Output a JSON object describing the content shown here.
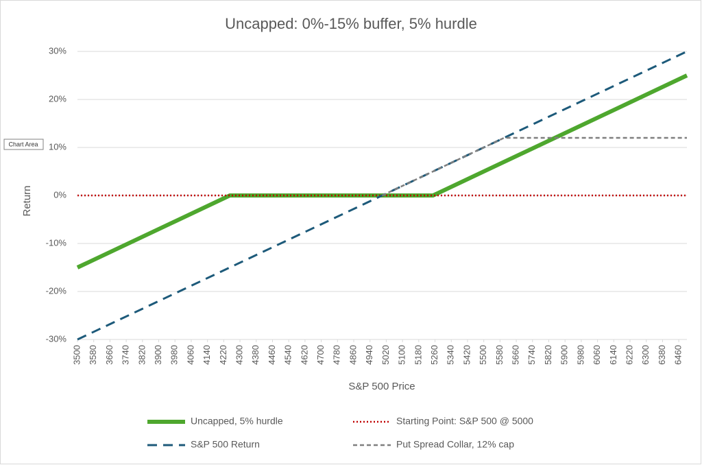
{
  "chart_data": {
    "type": "line",
    "title": "Uncapped: 0%-15% buffer, 5% hurdle",
    "x_label": "S&P 500 Price",
    "y_label": "Return",
    "tooltip": "Chart Area",
    "xlim": [
      3500,
      6500
    ],
    "xticks": [
      3500,
      3580,
      3660,
      3740,
      3820,
      3900,
      3980,
      4060,
      4140,
      4220,
      4300,
      4380,
      4460,
      4540,
      4620,
      4700,
      4780,
      4860,
      4940,
      5020,
      5100,
      5180,
      5260,
      5340,
      5420,
      5500,
      5580,
      5660,
      5740,
      5820,
      5900,
      5980,
      6060,
      6140,
      6220,
      6300,
      6380,
      6460
    ],
    "ylim": [
      -30,
      30
    ],
    "yticks": [
      {
        "value": -30,
        "label": "-30%"
      },
      {
        "value": -20,
        "label": "-20%"
      },
      {
        "value": -10,
        "label": "-10%"
      },
      {
        "value": 0,
        "label": "0%"
      },
      {
        "value": 10,
        "label": "10%"
      },
      {
        "value": 20,
        "label": "20%"
      },
      {
        "value": 30,
        "label": "30%"
      }
    ],
    "grid": true,
    "legend_position": "bottom",
    "series": [
      {
        "name": "Uncapped, 5% hurdle",
        "color": "#4ea72e",
        "style": "solid",
        "x": [
          3500,
          4250,
          5250,
          6500
        ],
        "values": [
          -15,
          0,
          0,
          25
        ]
      },
      {
        "name": "Starting Point: S&P 500 @ 5000",
        "color": "#c00000",
        "style": "dotted",
        "x": [
          3500,
          6500
        ],
        "values": [
          0,
          0
        ]
      },
      {
        "name": "S&P 500 Return",
        "color": "#1d5a7a",
        "style": "dash",
        "x": [
          3500,
          6500
        ],
        "values": [
          -30,
          30
        ]
      },
      {
        "name": "Put Spread Collar, 12% cap",
        "color": "#7f7f7f",
        "style": "short-dash",
        "x": [
          5000,
          5600,
          6500
        ],
        "values": [
          0,
          12,
          12
        ]
      }
    ]
  }
}
